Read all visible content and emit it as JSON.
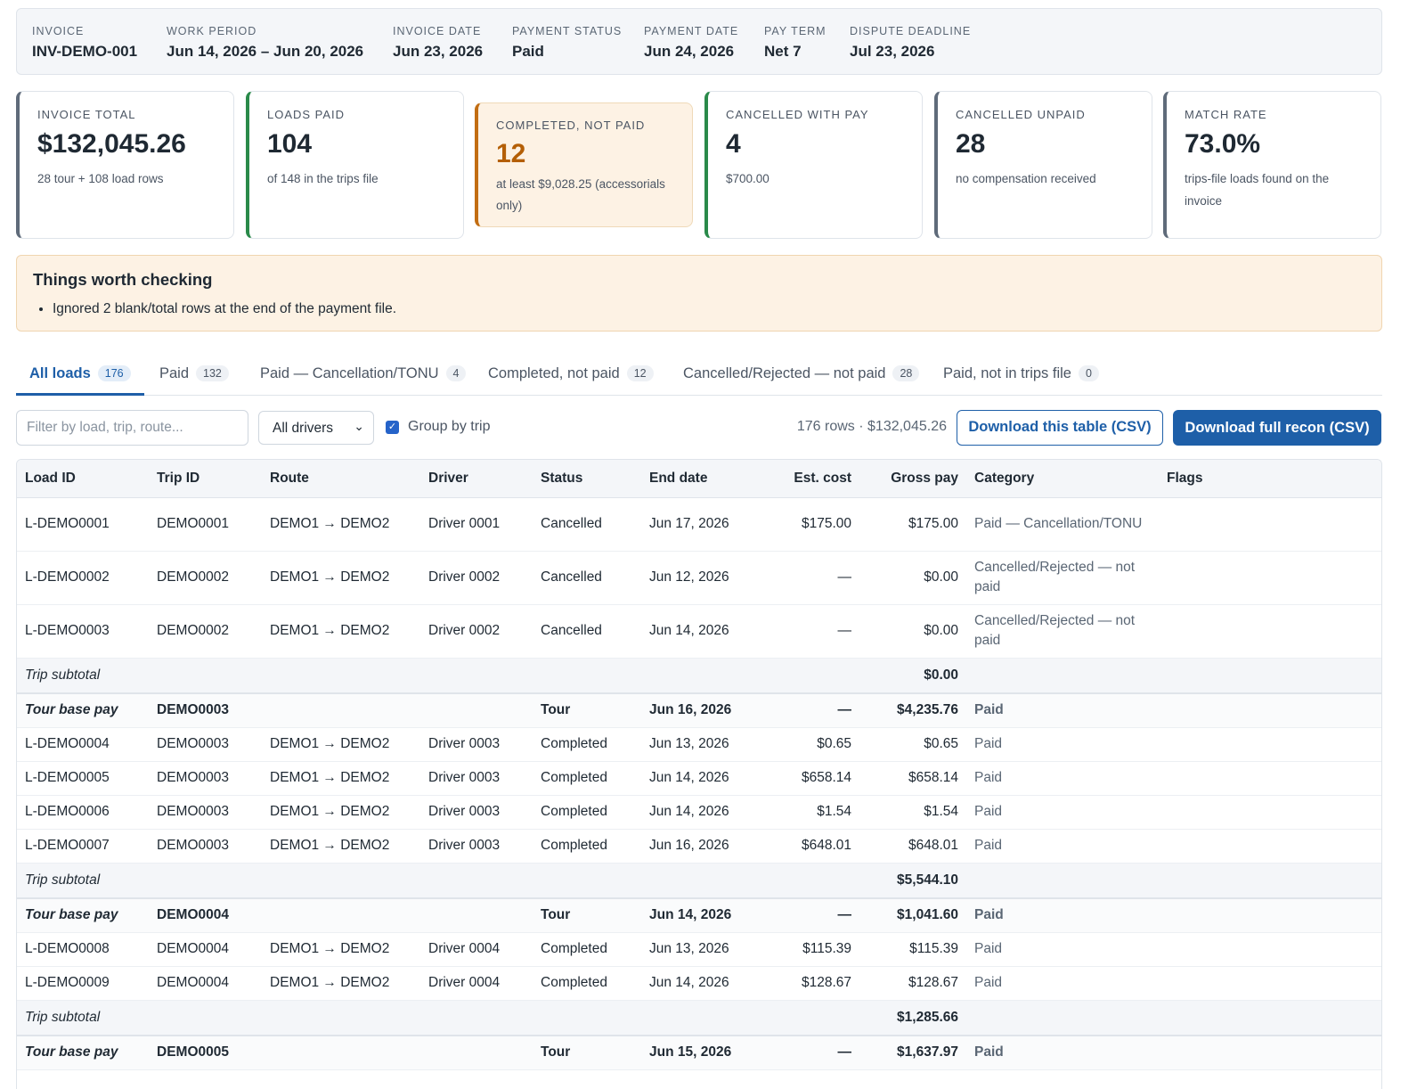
{
  "header": {
    "items": [
      {
        "label": "INVOICE",
        "value": "INV-DEMO-001"
      },
      {
        "label": "WORK PERIOD",
        "value": "Jun 14, 2026 – Jun 20, 2026"
      },
      {
        "label": "INVOICE DATE",
        "value": "Jun 23, 2026"
      },
      {
        "label": "PAYMENT STATUS",
        "value": "Paid"
      },
      {
        "label": "PAYMENT DATE",
        "value": "Jun 24, 2026"
      },
      {
        "label": "PAY TERM",
        "value": "Net 7"
      },
      {
        "label": "DISPUTE DEADLINE",
        "value": "Jul 23, 2026"
      }
    ]
  },
  "cards": [
    {
      "label": "INVOICE TOTAL",
      "value": "$132,045.26",
      "sub": "28 tour + 108 load rows"
    },
    {
      "label": "LOADS PAID",
      "value": "104",
      "sub": "of 148 in the trips file"
    },
    {
      "label": "COMPLETED, NOT PAID",
      "value": "12",
      "sub": "at least $9,028.25 (accessorials only)"
    },
    {
      "label": "CANCELLED WITH PAY",
      "value": "4",
      "sub": "$700.00"
    },
    {
      "label": "CANCELLED UNPAID",
      "value": "28",
      "sub": "no compensation received"
    },
    {
      "label": "MATCH RATE",
      "value": "73.0%",
      "sub": "trips-file loads found on the invoice"
    }
  ],
  "notice": {
    "title": "Things worth checking",
    "items": [
      "Ignored 2 blank/total rows at the end of the payment file."
    ]
  },
  "tabs": [
    {
      "label": "All loads",
      "count": "176"
    },
    {
      "label": "Paid",
      "count": "132"
    },
    {
      "label": "Paid — Cancellation/TONU",
      "count": "4"
    },
    {
      "label": "Completed, not paid",
      "count": "12"
    },
    {
      "label": "Cancelled/Rejected — not paid",
      "count": "28"
    },
    {
      "label": "Paid, not in trips file",
      "count": "0"
    }
  ],
  "controls": {
    "filter_placeholder": "Filter by load, trip, route...",
    "driver_select": "All drivers",
    "group_label": "Group by trip",
    "group_checked": true,
    "row_summary": "176 rows · $132,045.26",
    "download_table": "Download this table (CSV)",
    "download_full": "Download full recon (CSV)"
  },
  "table": {
    "columns": [
      "Load ID",
      "Trip ID",
      "Route",
      "Driver",
      "Status",
      "End date",
      "Est. cost",
      "Gross pay",
      "Category",
      "Flags"
    ],
    "rows": [
      {
        "load": "L-DEMO0001",
        "trip": "DEMO0001",
        "route": "DEMO1 → DEMO2",
        "driver": "Driver 0001",
        "status": "Cancelled",
        "end": "Jun 17, 2026",
        "cost": "$175.00",
        "gross": "$175.00",
        "cat": "Paid — Cancellation/TONU",
        "flags": ""
      },
      {
        "load": "L-DEMO0002",
        "trip": "DEMO0002",
        "route": "DEMO1 → DEMO2",
        "driver": "Driver 0002",
        "status": "Cancelled",
        "end": "Jun 12, 2026",
        "cost": "—",
        "gross": "$0.00",
        "cat": "Cancelled/Rejected — not paid",
        "flags": ""
      },
      {
        "load": "L-DEMO0003",
        "trip": "DEMO0002",
        "route": "DEMO1 → DEMO2",
        "driver": "Driver 0002",
        "status": "Cancelled",
        "end": "Jun 14, 2026",
        "cost": "—",
        "gross": "$0.00",
        "cat": "Cancelled/Rejected — not paid",
        "flags": ""
      },
      {
        "subtotal_label": "Trip subtotal",
        "subtotal": "$0.00"
      },
      {
        "tour_label": "Tour base pay",
        "trip": "DEMO0003",
        "status": "Tour",
        "end": "Jun 16, 2026",
        "cost": "—",
        "gross": "$4,235.76",
        "cat": "Paid"
      },
      {
        "load": "L-DEMO0004",
        "trip": "DEMO0003",
        "route": "DEMO1 → DEMO2",
        "driver": "Driver 0003",
        "status": "Completed",
        "end": "Jun 13, 2026",
        "cost": "$0.65",
        "gross": "$0.65",
        "cat": "Paid",
        "flags": ""
      },
      {
        "load": "L-DEMO0005",
        "trip": "DEMO0003",
        "route": "DEMO1 → DEMO2",
        "driver": "Driver 0003",
        "status": "Completed",
        "end": "Jun 14, 2026",
        "cost": "$658.14",
        "gross": "$658.14",
        "cat": "Paid",
        "flags": ""
      },
      {
        "load": "L-DEMO0006",
        "trip": "DEMO0003",
        "route": "DEMO1 → DEMO2",
        "driver": "Driver 0003",
        "status": "Completed",
        "end": "Jun 14, 2026",
        "cost": "$1.54",
        "gross": "$1.54",
        "cat": "Paid",
        "flags": ""
      },
      {
        "load": "L-DEMO0007",
        "trip": "DEMO0003",
        "route": "DEMO1 → DEMO2",
        "driver": "Driver 0003",
        "status": "Completed",
        "end": "Jun 16, 2026",
        "cost": "$648.01",
        "gross": "$648.01",
        "cat": "Paid",
        "flags": ""
      },
      {
        "subtotal_label": "Trip subtotal",
        "subtotal": "$5,544.10"
      },
      {
        "tour_label": "Tour base pay",
        "trip": "DEMO0004",
        "status": "Tour",
        "end": "Jun 14, 2026",
        "cost": "—",
        "gross": "$1,041.60",
        "cat": "Paid"
      },
      {
        "load": "L-DEMO0008",
        "trip": "DEMO0004",
        "route": "DEMO1 → DEMO2",
        "driver": "Driver 0004",
        "status": "Completed",
        "end": "Jun 13, 2026",
        "cost": "$115.39",
        "gross": "$115.39",
        "cat": "Paid",
        "flags": ""
      },
      {
        "load": "L-DEMO0009",
        "trip": "DEMO0004",
        "route": "DEMO1 → DEMO2",
        "driver": "Driver 0004",
        "status": "Completed",
        "end": "Jun 14, 2026",
        "cost": "$128.67",
        "gross": "$128.67",
        "cat": "Paid",
        "flags": ""
      },
      {
        "subtotal_label": "Trip subtotal",
        "subtotal": "$1,285.66"
      },
      {
        "tour_label": "Tour base pay",
        "trip": "DEMO0005",
        "status": "Tour",
        "end": "Jun 15, 2026",
        "cost": "—",
        "gross": "$1,637.97",
        "cat": "Paid"
      }
    ]
  },
  "colors": {
    "accent": "#1e5fa8",
    "warn_accent": "#c26d12",
    "green_accent": "#2a8a4a",
    "slate_accent": "#5f6b7a",
    "notice_bg": "#fdf2e4"
  },
  "icons": {
    "select_chevron": "chevron-down-icon",
    "checkbox": "checkmark-icon"
  }
}
